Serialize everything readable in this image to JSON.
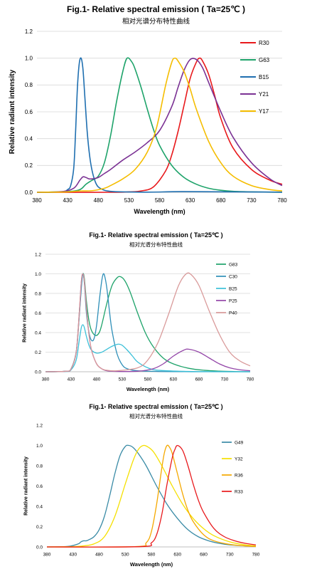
{
  "chart_data": [
    {
      "type": "line",
      "title": "Fig.1- Relative spectral emission ( Ta=25℃ )",
      "subtitle": "相对光谱分布特性曲线",
      "xlabel": "Wavelength (nm)",
      "ylabel": "Relative radiant intensity",
      "xlim": [
        380,
        780
      ],
      "ylim": [
        0,
        1.2
      ],
      "xticks": [
        380,
        430,
        480,
        530,
        580,
        630,
        680,
        730,
        780
      ],
      "yticks": [
        0.0,
        0.2,
        0.4,
        0.6,
        0.8,
        1.0,
        1.2
      ],
      "ytick_labels": [
        "0.0",
        "0.2",
        "0.4",
        "0.6",
        "0.8",
        "1.0",
        "1.2"
      ],
      "grid": "horizontal",
      "legend": "top-right",
      "series": [
        {
          "name": "R30",
          "color": "#e8191c",
          "x": [
            380,
            500,
            530,
            550,
            570,
            590,
            600,
            610,
            620,
            630,
            640,
            645,
            650,
            660,
            670,
            680,
            700,
            730,
            760,
            780
          ],
          "y": [
            0,
            0,
            0.003,
            0.01,
            0.04,
            0.16,
            0.28,
            0.45,
            0.65,
            0.85,
            0.97,
            1.0,
            0.98,
            0.88,
            0.72,
            0.55,
            0.33,
            0.17,
            0.09,
            0.06
          ]
        },
        {
          "name": "G63",
          "color": "#1ea36a",
          "x": [
            380,
            430,
            450,
            460,
            470,
            480,
            490,
            500,
            510,
            520,
            527,
            535,
            540,
            550,
            560,
            570,
            580,
            600,
            620,
            640,
            660,
            680,
            700,
            730,
            760,
            780
          ],
          "y": [
            0,
            0.005,
            0.02,
            0.06,
            0.09,
            0.12,
            0.22,
            0.42,
            0.68,
            0.9,
            1.0,
            0.97,
            0.92,
            0.78,
            0.62,
            0.47,
            0.35,
            0.2,
            0.11,
            0.06,
            0.03,
            0.015,
            0.007,
            0.003,
            0.001,
            0
          ]
        },
        {
          "name": "B15",
          "color": "#1f6fb0",
          "x": [
            380,
            420,
            430,
            435,
            440,
            443,
            446,
            449,
            452,
            455,
            458,
            462,
            466,
            470,
            475,
            480,
            490,
            500,
            520,
            560,
            620,
            700,
            780
          ],
          "y": [
            0,
            0.003,
            0.02,
            0.05,
            0.18,
            0.45,
            0.78,
            0.96,
            1.0,
            0.92,
            0.72,
            0.45,
            0.27,
            0.16,
            0.08,
            0.04,
            0.015,
            0.007,
            0.003,
            0.001,
            0.005,
            0.003,
            0.001
          ]
        },
        {
          "name": "Y21",
          "color": "#7b3294",
          "x": [
            380,
            420,
            440,
            450,
            455,
            460,
            465,
            470,
            480,
            490,
            500,
            520,
            540,
            560,
            580,
            600,
            610,
            620,
            630,
            640,
            650,
            660,
            680,
            700,
            730,
            760,
            780
          ],
          "y": [
            0,
            0.005,
            0.03,
            0.09,
            0.115,
            0.11,
            0.1,
            0.1,
            0.11,
            0.14,
            0.17,
            0.24,
            0.3,
            0.37,
            0.46,
            0.64,
            0.78,
            0.91,
            0.99,
            0.99,
            0.93,
            0.82,
            0.6,
            0.41,
            0.22,
            0.1,
            0.05
          ]
        },
        {
          "name": "Y17",
          "color": "#f5bd00",
          "x": [
            380,
            430,
            450,
            470,
            490,
            500,
            520,
            540,
            560,
            575,
            590,
            600,
            605,
            610,
            620,
            630,
            640,
            660,
            680,
            700,
            730,
            760,
            780
          ],
          "y": [
            0,
            0.003,
            0.01,
            0.012,
            0.03,
            0.05,
            0.1,
            0.17,
            0.3,
            0.48,
            0.8,
            0.97,
            1.0,
            0.98,
            0.9,
            0.77,
            0.62,
            0.38,
            0.22,
            0.12,
            0.05,
            0.02,
            0.01
          ]
        }
      ]
    },
    {
      "type": "line",
      "title": "Fig.1- Relative spectral emission ( Ta=25℃ )",
      "subtitle": "相对光谱分布特性曲线",
      "xlabel": "Wavelength (nm)",
      "ylabel": "Relative radiant intensity",
      "xlim": [
        380,
        780
      ],
      "ylim": [
        0,
        1.2
      ],
      "xticks": [
        380,
        430,
        480,
        530,
        580,
        630,
        680,
        730,
        780
      ],
      "yticks": [
        0.0,
        0.2,
        0.4,
        0.6,
        0.8,
        1.0,
        1.2
      ],
      "ytick_labels": [
        "0.0",
        "0.2",
        "0.4",
        "0.6",
        "0.8",
        "1.0",
        "1.2"
      ],
      "grid": "horizontal",
      "legend": "top-right",
      "series": [
        {
          "name": "G83",
          "color": "#1ea36a",
          "x": [
            380,
            420,
            430,
            440,
            445,
            450,
            453,
            456,
            460,
            465,
            470,
            478,
            485,
            490,
            500,
            510,
            520,
            527,
            535,
            545,
            560,
            575,
            590,
            610,
            630,
            660,
            690,
            720,
            750,
            780
          ],
          "y": [
            0,
            0.005,
            0.03,
            0.2,
            0.5,
            0.88,
            1.0,
            0.95,
            0.72,
            0.52,
            0.42,
            0.37,
            0.4,
            0.48,
            0.7,
            0.88,
            0.96,
            0.97,
            0.93,
            0.82,
            0.6,
            0.4,
            0.26,
            0.14,
            0.08,
            0.035,
            0.015,
            0.006,
            0.002,
            0
          ]
        },
        {
          "name": "C30",
          "color": "#2e8fb8",
          "x": [
            380,
            420,
            430,
            440,
            445,
            450,
            453,
            456,
            460,
            465,
            470,
            475,
            480,
            485,
            490,
            493,
            496,
            500,
            505,
            510,
            520,
            530,
            540,
            560,
            600,
            650,
            700,
            780
          ],
          "y": [
            0,
            0.005,
            0.03,
            0.2,
            0.5,
            0.85,
            1.0,
            0.9,
            0.6,
            0.4,
            0.32,
            0.34,
            0.48,
            0.72,
            0.93,
            1.0,
            0.97,
            0.85,
            0.62,
            0.42,
            0.18,
            0.07,
            0.03,
            0.01,
            0.003,
            0.001,
            0,
            0
          ]
        },
        {
          "name": "B25",
          "color": "#3cc0d8",
          "x": [
            380,
            420,
            430,
            440,
            446,
            450,
            453,
            456,
            460,
            465,
            470,
            480,
            490,
            500,
            510,
            520,
            525,
            530,
            540,
            550,
            560,
            580,
            600,
            650,
            700,
            780
          ],
          "y": [
            0,
            0.003,
            0.02,
            0.12,
            0.32,
            0.45,
            0.48,
            0.45,
            0.36,
            0.27,
            0.22,
            0.19,
            0.2,
            0.23,
            0.26,
            0.28,
            0.28,
            0.27,
            0.22,
            0.16,
            0.1,
            0.04,
            0.015,
            0.004,
            0.001,
            0
          ]
        },
        {
          "name": "P25",
          "color": "#9447a8",
          "x": [
            380,
            420,
            430,
            440,
            446,
            450,
            453,
            456,
            460,
            465,
            470,
            480,
            490,
            500,
            520,
            560,
            590,
            610,
            630,
            650,
            660,
            680,
            700,
            720,
            740,
            760,
            780
          ],
          "y": [
            0,
            0.005,
            0.03,
            0.2,
            0.6,
            0.92,
            1.0,
            0.92,
            0.65,
            0.38,
            0.22,
            0.08,
            0.03,
            0.01,
            0.003,
            0.005,
            0.03,
            0.08,
            0.16,
            0.22,
            0.23,
            0.2,
            0.14,
            0.08,
            0.04,
            0.02,
            0.01
          ]
        },
        {
          "name": "P40",
          "color": "#d99a9a",
          "x": [
            380,
            420,
            430,
            440,
            446,
            450,
            453,
            456,
            460,
            465,
            470,
            480,
            490,
            500,
            520,
            560,
            580,
            600,
            620,
            640,
            655,
            665,
            680,
            700,
            720,
            740,
            760,
            780
          ],
          "y": [
            0,
            0.005,
            0.03,
            0.2,
            0.6,
            0.92,
            1.0,
            0.92,
            0.65,
            0.38,
            0.22,
            0.08,
            0.03,
            0.015,
            0.01,
            0.04,
            0.12,
            0.3,
            0.58,
            0.88,
            1.0,
            0.99,
            0.88,
            0.62,
            0.38,
            0.2,
            0.11,
            0.06
          ]
        }
      ]
    },
    {
      "type": "line",
      "title": "Fig.1- Relative spectral emission ( Ta=25℃ )",
      "subtitle": "相对光谱分布特性曲线",
      "xlabel": "Wavelength (nm)",
      "ylabel": "Relative radiant intensity",
      "xlim": [
        380,
        780
      ],
      "ylim": [
        0,
        1.2
      ],
      "xticks": [
        380,
        430,
        480,
        530,
        580,
        630,
        680,
        730,
        780
      ],
      "yticks": [
        0.0,
        0.2,
        0.4,
        0.6,
        0.8,
        1.0,
        1.2
      ],
      "ytick_labels": [
        "0.0",
        "0.2",
        "0.4",
        "0.6",
        "0.8",
        "1.0",
        "1.2"
      ],
      "grid": "none",
      "legend": "top-right",
      "series": [
        {
          "name": "G49",
          "color": "#3a8ba6",
          "x": [
            380,
            420,
            440,
            445,
            450,
            455,
            460,
            470,
            480,
            490,
            500,
            510,
            520,
            530,
            537,
            545,
            555,
            570,
            590,
            610,
            630,
            650,
            670,
            690,
            710,
            730,
            760,
            780
          ],
          "y": [
            0,
            0.005,
            0.03,
            0.05,
            0.06,
            0.06,
            0.07,
            0.1,
            0.17,
            0.3,
            0.5,
            0.72,
            0.9,
            0.99,
            1.0,
            0.98,
            0.92,
            0.8,
            0.6,
            0.42,
            0.28,
            0.17,
            0.1,
            0.06,
            0.035,
            0.02,
            0.01,
            0.005
          ]
        },
        {
          "name": "Y32",
          "color": "#f5e000",
          "x": [
            380,
            430,
            450,
            470,
            490,
            510,
            530,
            545,
            555,
            565,
            575,
            585,
            600,
            620,
            640,
            660,
            680,
            700,
            730,
            760,
            780
          ],
          "y": [
            0,
            0.003,
            0.01,
            0.03,
            0.1,
            0.3,
            0.62,
            0.85,
            0.96,
            1.0,
            0.98,
            0.93,
            0.8,
            0.6,
            0.42,
            0.28,
            0.18,
            0.11,
            0.05,
            0.02,
            0.01
          ]
        },
        {
          "name": "R36",
          "color": "#f5a800",
          "x": [
            380,
            550,
            570,
            580,
            590,
            600,
            605,
            610,
            615,
            620,
            630,
            640,
            650,
            660,
            680,
            700,
            730,
            760,
            780
          ],
          "y": [
            0,
            0.003,
            0.04,
            0.15,
            0.42,
            0.78,
            0.93,
            1.0,
            0.98,
            0.92,
            0.72,
            0.52,
            0.36,
            0.25,
            0.12,
            0.06,
            0.025,
            0.01,
            0.005
          ]
        },
        {
          "name": "R33",
          "color": "#e8191c",
          "x": [
            380,
            560,
            580,
            590,
            600,
            610,
            620,
            625,
            630,
            640,
            650,
            660,
            670,
            680,
            700,
            720,
            740,
            760,
            780
          ],
          "y": [
            0,
            0.003,
            0.04,
            0.12,
            0.32,
            0.62,
            0.88,
            0.96,
            1.0,
            0.95,
            0.8,
            0.62,
            0.46,
            0.34,
            0.18,
            0.1,
            0.06,
            0.035,
            0.02
          ]
        }
      ]
    }
  ]
}
